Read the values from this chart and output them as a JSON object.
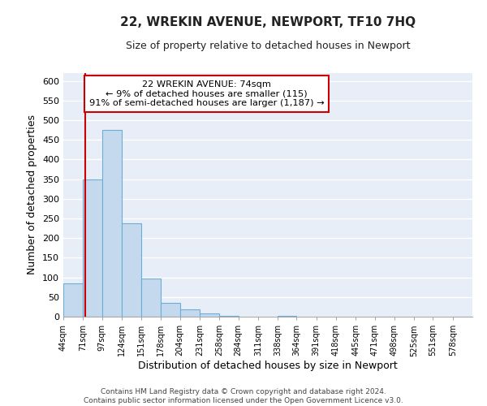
{
  "title": "22, WREKIN AVENUE, NEWPORT, TF10 7HQ",
  "subtitle": "Size of property relative to detached houses in Newport",
  "xlabel": "Distribution of detached houses by size in Newport",
  "ylabel": "Number of detached properties",
  "bin_labels": [
    "44sqm",
    "71sqm",
    "97sqm",
    "124sqm",
    "151sqm",
    "178sqm",
    "204sqm",
    "231sqm",
    "258sqm",
    "284sqm",
    "311sqm",
    "338sqm",
    "364sqm",
    "391sqm",
    "418sqm",
    "445sqm",
    "471sqm",
    "498sqm",
    "525sqm",
    "551sqm",
    "578sqm"
  ],
  "bin_edges": [
    44,
    71,
    97,
    124,
    151,
    178,
    204,
    231,
    258,
    284,
    311,
    338,
    364,
    391,
    418,
    445,
    471,
    498,
    525,
    551,
    578,
    605
  ],
  "bar_heights": [
    85,
    350,
    475,
    237,
    97,
    35,
    18,
    8,
    3,
    0,
    0,
    2,
    0,
    0,
    0,
    0,
    1,
    0,
    0,
    0,
    1
  ],
  "bar_color": "#c5d9ee",
  "bar_edgecolor": "#6aaed6",
  "property_size": 74,
  "vline_color": "#cc0000",
  "annotation_line1": "22 WREKIN AVENUE: 74sqm",
  "annotation_line2": "← 9% of detached houses are smaller (115)",
  "annotation_line3": "91% of semi-detached houses are larger (1,187) →",
  "annotation_box_edgecolor": "#cc0000",
  "annotation_box_facecolor": "#ffffff",
  "ylim": [
    0,
    620
  ],
  "yticks": [
    0,
    50,
    100,
    150,
    200,
    250,
    300,
    350,
    400,
    450,
    500,
    550,
    600
  ],
  "footer_line1": "Contains HM Land Registry data © Crown copyright and database right 2024.",
  "footer_line2": "Contains public sector information licensed under the Open Government Licence v3.0.",
  "bg_color": "#ffffff",
  "plot_bg_color": "#e8eef7",
  "grid_color": "#ffffff"
}
